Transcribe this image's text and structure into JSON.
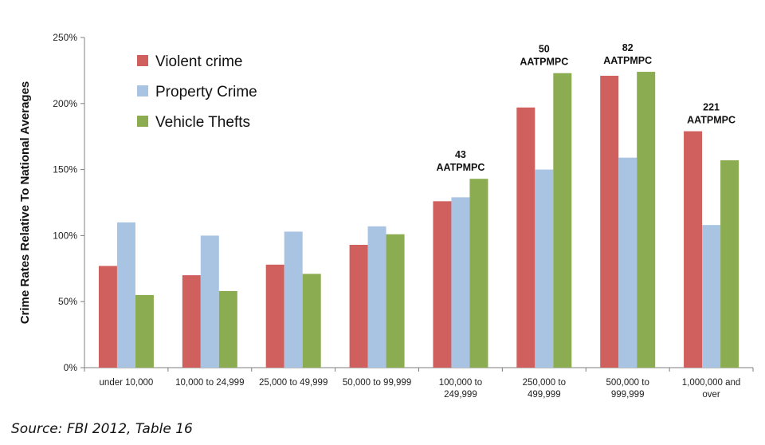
{
  "chart_data": {
    "type": "bar",
    "ylabel": "Crime Rates Relative To National Averages",
    "ylim": [
      0,
      250
    ],
    "yticks": [
      "0%",
      "50%",
      "100%",
      "150%",
      "200%",
      "250%"
    ],
    "grid": false,
    "legend_placement": "top-left",
    "categories": [
      [
        "under 10,000"
      ],
      [
        "10,000 to 24,999"
      ],
      [
        "25,000 to 49,999"
      ],
      [
        "50,000 to 99,999"
      ],
      [
        "100,000 to",
        "249,999"
      ],
      [
        "250,000 to",
        "499,999"
      ],
      [
        "500,000 to",
        "999,999"
      ],
      [
        "1,000,000 and",
        "over"
      ]
    ],
    "series": [
      {
        "name": "Violent crime",
        "color": "#d0605e",
        "values": [
          77,
          70,
          78,
          93,
          126,
          197,
          221,
          179
        ]
      },
      {
        "name": "Property Crime",
        "color": "#a8c4e2",
        "values": [
          110,
          100,
          103,
          107,
          129,
          150,
          159,
          108
        ]
      },
      {
        "name": "Vehicle Thefts",
        "color": "#8cac52",
        "values": [
          55,
          58,
          71,
          101,
          143,
          223,
          224,
          157
        ]
      }
    ],
    "annotations": [
      {
        "category_index": 4,
        "lines": [
          "43",
          "AATPMPC"
        ]
      },
      {
        "category_index": 5,
        "lines": [
          "50",
          "AATPMPC"
        ]
      },
      {
        "category_index": 6,
        "lines": [
          "82",
          "AATPMPC"
        ]
      },
      {
        "category_index": 7,
        "lines": [
          "221",
          "AATPMPC"
        ]
      }
    ]
  },
  "source": "Source: FBI 2012, Table 16"
}
